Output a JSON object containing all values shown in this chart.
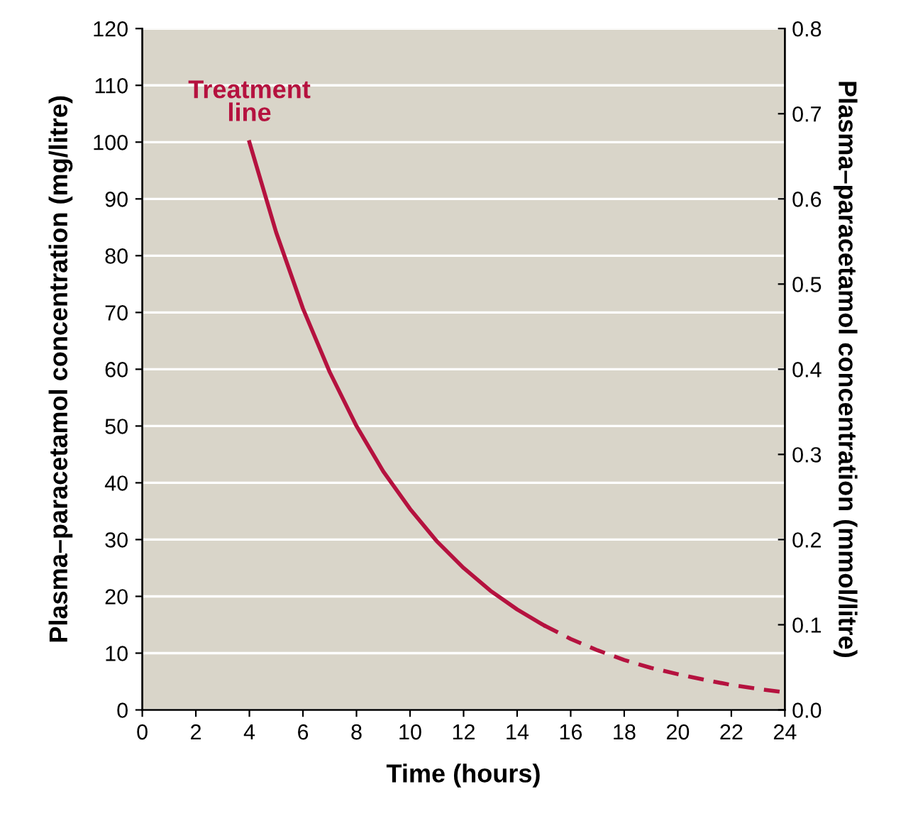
{
  "chart_data": {
    "type": "line",
    "xlabel": "Time (hours)",
    "ylabel": "Plasma–paracetamol concentration (mg/litre)",
    "y2label": "Plasma–paracetamol concentration (mmol/litre)",
    "xlim": [
      0,
      24
    ],
    "xticks": [
      0,
      2,
      4,
      6,
      8,
      10,
      12,
      14,
      16,
      18,
      20,
      22,
      24
    ],
    "ylim": [
      0,
      120
    ],
    "yticks": [
      0,
      10,
      20,
      30,
      40,
      50,
      60,
      70,
      80,
      90,
      100,
      110,
      120
    ],
    "y2lim": [
      0,
      0.8
    ],
    "y2ticks": [
      {
        "value": 0,
        "label": "0.0"
      },
      0.1,
      0.2,
      0.3,
      0.4,
      0.5,
      0.6,
      0.7,
      0.8
    ],
    "grid": "y",
    "marker": "none",
    "series": [
      {
        "color": "#b5123f",
        "line_style": "solid",
        "x": [
          4,
          5,
          6,
          7,
          8,
          9,
          10,
          11,
          12,
          13,
          14,
          15
        ],
        "values": [
          100,
          84.1,
          70.7,
          59.5,
          50,
          42,
          35.4,
          29.7,
          25,
          21,
          17.7,
          14.9
        ]
      },
      {
        "color": "#b5123f",
        "line_style": "dashed",
        "x": [
          15,
          16,
          17,
          18,
          19,
          20,
          21,
          22,
          23,
          24
        ],
        "values": [
          14.9,
          12.5,
          10.5,
          8.8,
          7.4,
          6.3,
          5.3,
          4.4,
          3.7,
          3.1
        ]
      }
    ],
    "annotations": [
      {
        "text": "Treatment\nline",
        "x": 4,
        "y": 100
      }
    ]
  }
}
